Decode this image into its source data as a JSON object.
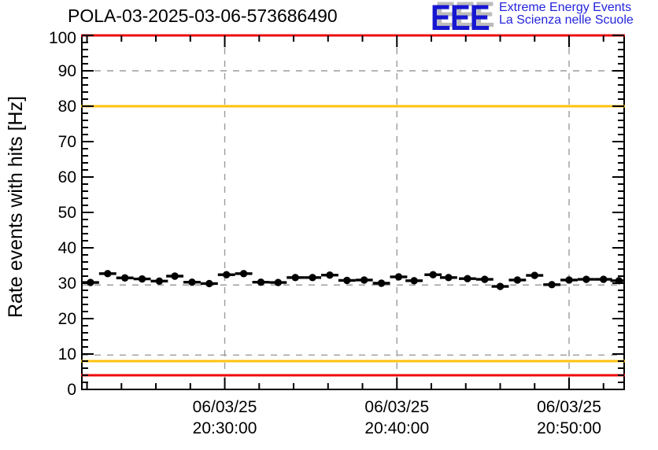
{
  "header": {
    "title": "POLA-03-2025-03-06-573686490"
  },
  "logo": {
    "acronym": "EEE",
    "line1": "Extreme Energy Events",
    "line2": "La Scienza nelle Scuole",
    "acronym_color": "#1616d1",
    "text_color": "#2424dd"
  },
  "colors": {
    "alarm_line": "#ee0c0c",
    "warning_line": "#ffc20e",
    "guide_dashed": "#9c9c9c",
    "data": "#000000",
    "frame": "#000000"
  },
  "chart_data": {
    "type": "scatter",
    "title": "POLA-03-2025-03-06-573686490",
    "xlabel": "",
    "ylabel": "Rate events with hits [Hz]",
    "ylim": [
      0,
      100
    ],
    "y_major_step": 10,
    "y_minor_step": 2,
    "y_tick_labels": [
      "0",
      "10",
      "20",
      "30",
      "40",
      "50",
      "60",
      "70",
      "80",
      "90",
      "100"
    ],
    "x_minutes_lim": [
      21.7,
      53.2
    ],
    "x_minor_step_min": 2,
    "x_ticks": [
      {
        "minute": 30,
        "date": "06/03/25",
        "time": "20:30:00"
      },
      {
        "minute": 40,
        "date": "06/03/25",
        "time": "20:40:00"
      },
      {
        "minute": 50,
        "date": "06/03/25",
        "time": "20:50:00"
      }
    ],
    "grid": false,
    "legend": "none",
    "threshold_lines_solid": [
      {
        "name": "alarm-high",
        "y": 100,
        "color": "#ee0c0c"
      },
      {
        "name": "warning-high",
        "y": 80,
        "color": "#ffc20e"
      },
      {
        "name": "warning-low",
        "y": 8,
        "color": "#ffc20e"
      },
      {
        "name": "alarm-low",
        "y": 4,
        "color": "#ee0c0c"
      }
    ],
    "guide_lines_dashed_y": [
      90,
      29.5,
      9.7
    ],
    "guide_lines_dashed_x_minutes": [
      30,
      40,
      50
    ],
    "series": [
      {
        "name": "rate-events-with-hits",
        "marker": "filled-circle",
        "color": "#000000",
        "x_error_halfwidth_min": 0.5,
        "t_min": [
          22.2,
          23.2,
          24.2,
          25.2,
          26.2,
          27.1,
          28.1,
          29.1,
          30.1,
          31.1,
          32.1,
          33.1,
          34.1,
          35.1,
          36.1,
          37.1,
          38.1,
          39.1,
          40.1,
          41.0,
          42.1,
          43.0,
          44.1,
          45.1,
          46.0,
          47.0,
          48.0,
          49.0,
          50.0,
          51.0,
          52.0,
          52.9
        ],
        "rate_hz": [
          30.2,
          32.7,
          31.5,
          31.2,
          30.6,
          32.0,
          30.3,
          29.9,
          32.4,
          32.7,
          30.3,
          30.2,
          31.6,
          31.6,
          32.3,
          30.8,
          30.9,
          30.0,
          31.8,
          30.7,
          32.4,
          31.6,
          31.3,
          31.1,
          29.1,
          30.9,
          32.2,
          29.6,
          30.9,
          31.1,
          31.1,
          30.7
        ]
      }
    ]
  }
}
